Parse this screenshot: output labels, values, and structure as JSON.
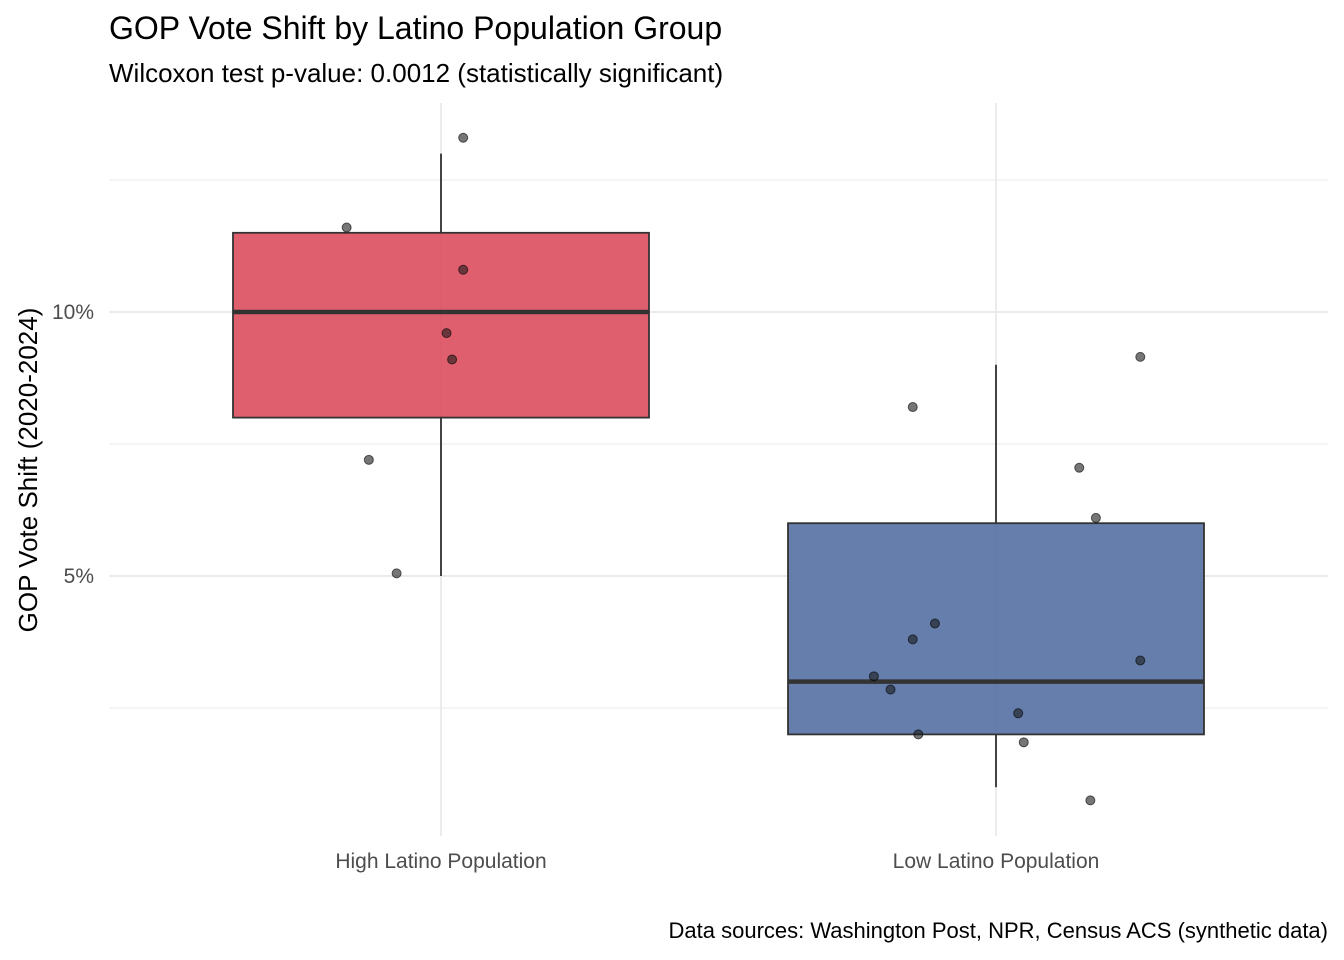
{
  "chart_data": {
    "type": "boxplot",
    "title": "GOP Vote Shift by Latino Population Group",
    "subtitle": "Wilcoxon test p-value: 0.0012 (statistically significant)",
    "caption": "Data sources: Washington Post, NPR, Census ACS (synthetic data)",
    "xlabel": "",
    "ylabel": "GOP Vote Shift (2020-2024)",
    "ylim": [
      0.3,
      13.8
    ],
    "y_ticks": [
      5,
      10
    ],
    "y_tick_labels": [
      "5%",
      "10%"
    ],
    "y_minor_ticks": [
      2.5,
      7.5,
      12.5
    ],
    "grid": true,
    "categories": [
      "High Latino Population",
      "Low Latino Population"
    ],
    "colors": [
      "#DC4E5E",
      "#5470A3"
    ],
    "boxes": [
      {
        "category": "High Latino Population",
        "min": 5.0,
        "q1": 8.0,
        "median": 10.0,
        "q3": 11.5,
        "max": 13.0
      },
      {
        "category": "Low Latino Population",
        "min": 1.0,
        "q1": 2.0,
        "median": 3.0,
        "q3": 6.0,
        "max": 9.0
      }
    ],
    "points": [
      {
        "category": "High Latino Population",
        "jitter": 0.04,
        "y": 13.3
      },
      {
        "category": "High Latino Population",
        "jitter": -0.17,
        "y": 11.6
      },
      {
        "category": "High Latino Population",
        "jitter": 0.04,
        "y": 10.8
      },
      {
        "category": "High Latino Population",
        "jitter": 0.01,
        "y": 9.6
      },
      {
        "category": "High Latino Population",
        "jitter": 0.02,
        "y": 9.1
      },
      {
        "category": "High Latino Population",
        "jitter": -0.13,
        "y": 7.2
      },
      {
        "category": "High Latino Population",
        "jitter": -0.08,
        "y": 5.05
      },
      {
        "category": "Low Latino Population",
        "jitter": -0.15,
        "y": 8.2
      },
      {
        "category": "Low Latino Population",
        "jitter": 0.26,
        "y": 9.15
      },
      {
        "category": "Low Latino Population",
        "jitter": 0.15,
        "y": 7.05
      },
      {
        "category": "Low Latino Population",
        "jitter": 0.18,
        "y": 6.1
      },
      {
        "category": "Low Latino Population",
        "jitter": -0.11,
        "y": 4.1
      },
      {
        "category": "Low Latino Population",
        "jitter": -0.15,
        "y": 3.8
      },
      {
        "category": "Low Latino Population",
        "jitter": 0.26,
        "y": 3.4
      },
      {
        "category": "Low Latino Population",
        "jitter": -0.22,
        "y": 3.1
      },
      {
        "category": "Low Latino Population",
        "jitter": -0.19,
        "y": 2.85
      },
      {
        "category": "Low Latino Population",
        "jitter": 0.04,
        "y": 2.4
      },
      {
        "category": "Low Latino Population",
        "jitter": -0.14,
        "y": 2.0
      },
      {
        "category": "Low Latino Population",
        "jitter": 0.05,
        "y": 1.85
      },
      {
        "category": "Low Latino Population",
        "jitter": 0.17,
        "y": 0.75
      }
    ]
  }
}
